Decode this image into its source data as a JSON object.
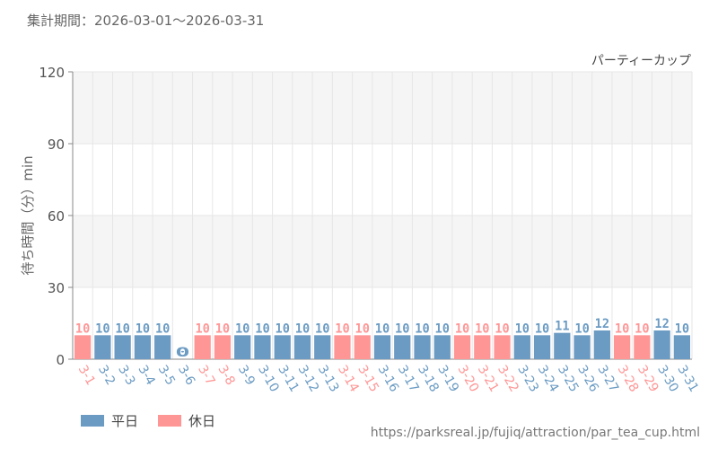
{
  "period_label": "集計期間：2026-03-01～2026-03-31",
  "source_url": "https://parksreal.jp/fujiq/attraction/par_tea_cup.html",
  "colors": {
    "weekday": "#6b9bc3",
    "holiday": "#ff9696",
    "grid": "#e6e6e6",
    "band": "#f5f5f5"
  },
  "chart_data": {
    "type": "bar",
    "title": "パーティーカップ",
    "ylabel": "待ち時間（分）min",
    "ylim": [
      0,
      120
    ],
    "yticks": [
      0,
      30,
      60,
      90,
      120
    ],
    "categories": [
      "3-1",
      "3-2",
      "3-3",
      "3-4",
      "3-5",
      "3-6",
      "3-7",
      "3-8",
      "3-9",
      "3-10",
      "3-11",
      "3-12",
      "3-13",
      "3-14",
      "3-15",
      "3-16",
      "3-17",
      "3-18",
      "3-19",
      "3-20",
      "3-21",
      "3-22",
      "3-23",
      "3-24",
      "3-25",
      "3-26",
      "3-27",
      "3-28",
      "3-29",
      "3-30",
      "3-31"
    ],
    "values": [
      10,
      10,
      10,
      10,
      10,
      0,
      10,
      10,
      10,
      10,
      10,
      10,
      10,
      10,
      10,
      10,
      10,
      10,
      10,
      10,
      10,
      10,
      10,
      10,
      11,
      10,
      12,
      10,
      10,
      12,
      10
    ],
    "day_types": [
      "holiday",
      "weekday",
      "weekday",
      "weekday",
      "weekday",
      "weekday",
      "holiday",
      "holiday",
      "weekday",
      "weekday",
      "weekday",
      "weekday",
      "weekday",
      "holiday",
      "holiday",
      "weekday",
      "weekday",
      "weekday",
      "weekday",
      "holiday",
      "holiday",
      "holiday",
      "weekday",
      "weekday",
      "weekday",
      "weekday",
      "weekday",
      "holiday",
      "holiday",
      "weekday",
      "weekday"
    ],
    "legend": [
      {
        "key": "weekday",
        "label": "平日"
      },
      {
        "key": "holiday",
        "label": "休日"
      }
    ],
    "legend_position": "bottom-left"
  }
}
